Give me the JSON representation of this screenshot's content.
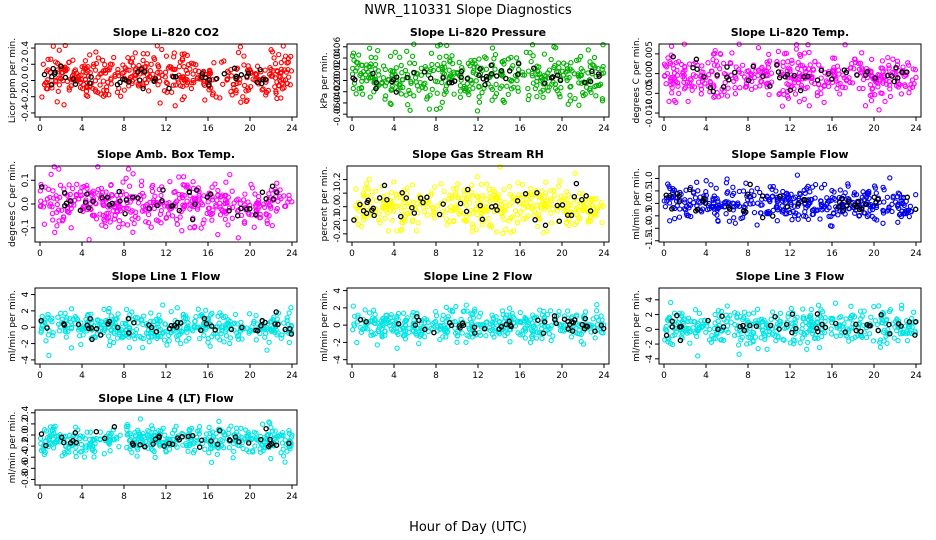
{
  "figure": {
    "title": "NWR_110331  Slope Diagnostics",
    "xlabel": "Hour of Day (UTC)"
  },
  "chart_data": [
    {
      "type": "scatter",
      "title": "Slope Li–820 CO2",
      "ylabel": "Licor ppm per min.",
      "color": "#ff0000",
      "xlim": [
        0,
        24
      ],
      "xticks": [
        0,
        4,
        8,
        12,
        16,
        20,
        24
      ],
      "ylim": [
        -0.45,
        0.45
      ],
      "yticks": [
        -0.4,
        -0.2,
        0.0,
        0.2,
        0.4
      ],
      "ytick_labels": [
        "-0.4",
        "-0.2",
        "0.0",
        "0.2",
        "0.4"
      ],
      "center": 0.05,
      "spread": 0.14,
      "n_points": 420,
      "n_black": 45,
      "black_spread": 0.08
    },
    {
      "type": "scatter",
      "title": "Slope Li–820 Pressure",
      "ylabel": "kPa per min.",
      "color": "#00b000",
      "xlim": [
        0,
        24
      ],
      "xticks": [
        0,
        4,
        8,
        12,
        16,
        20,
        24
      ],
      "ylim": [
        -0.065,
        0.065
      ],
      "yticks": [
        -0.06,
        -0.04,
        -0.02,
        0.0,
        0.02,
        0.04,
        0.06
      ],
      "ytick_labels": [
        "-0.06",
        "-0.04",
        "-0.02",
        "0.00",
        "0.02",
        "0.04",
        "0.06"
      ],
      "center": 0.005,
      "spread": 0.022,
      "n_points": 420,
      "n_black": 45,
      "black_spread": 0.012
    },
    {
      "type": "scatter",
      "title": "Slope Li–820 Temp.",
      "ylabel": "degrees C per min.",
      "color": "#ff00ff",
      "xlim": [
        0,
        24
      ],
      "xticks": [
        0,
        4,
        8,
        12,
        16,
        20,
        24
      ],
      "ylim": [
        -0.011,
        0.0075
      ],
      "yticks": [
        -0.01,
        -0.005,
        0.0,
        0.005
      ],
      "ytick_labels": [
        "-0.010",
        "-0.005",
        "0.000",
        "0.005"
      ],
      "center": -0.0005,
      "spread": 0.003,
      "n_points": 420,
      "n_black": 45,
      "black_spread": 0.002
    },
    {
      "type": "scatter",
      "title": "Slope Amb. Box Temp.",
      "ylabel": "degrees C per min.",
      "color": "#ff00ff",
      "xlim": [
        0,
        24
      ],
      "xticks": [
        0,
        4,
        8,
        12,
        16,
        20,
        24
      ],
      "ylim": [
        -0.16,
        0.16
      ],
      "yticks": [
        -0.1,
        0.0,
        0.1
      ],
      "ytick_labels": [
        "-0.1",
        "0.0",
        "0.1"
      ],
      "center": 0.0,
      "spread": 0.055,
      "n_points": 420,
      "n_black": 45,
      "black_spread": 0.035
    },
    {
      "type": "scatter",
      "title": "Slope Gas Stream RH",
      "ylabel": "percent per min.",
      "color": "#ffff00",
      "xlim": [
        0,
        24
      ],
      "xticks": [
        0,
        4,
        8,
        12,
        16,
        20,
        24
      ],
      "ylim": [
        -0.26,
        0.3
      ],
      "yticks": [
        -0.2,
        -0.1,
        0.0,
        0.1,
        0.2
      ],
      "ytick_labels": [
        "-0.2",
        "-0.1",
        "0.0",
        "0.1",
        "0.2"
      ],
      "center": 0.0,
      "spread": 0.08,
      "n_points": 420,
      "n_black": 45,
      "black_spread": 0.07
    },
    {
      "type": "scatter",
      "title": "Slope Sample Flow",
      "ylabel": "ml/min per min.",
      "color": "#0000ee",
      "xlim": [
        0,
        24
      ],
      "xticks": [
        0,
        4,
        8,
        12,
        16,
        20,
        24
      ],
      "ylim": [
        -1.55,
        1.5
      ],
      "yticks": [
        -1.5,
        -1.0,
        -0.5,
        0.0,
        0.5,
        1.0
      ],
      "ytick_labels": [
        "-1.5",
        "-1.0",
        "-0.5",
        "0.0",
        "0.5",
        "1.0"
      ],
      "center": 0.0,
      "spread": 0.35,
      "n_points": 420,
      "n_black": 45,
      "black_spread": 0.3
    },
    {
      "type": "scatter",
      "title": "Slope Line 1 Flow",
      "ylabel": "ml/min per min.",
      "color": "#00e5e5",
      "xlim": [
        0,
        24
      ],
      "xticks": [
        0,
        4,
        8,
        12,
        16,
        20,
        24
      ],
      "ylim": [
        -4.5,
        4.8
      ],
      "yticks": [
        -4,
        -2,
        0,
        2,
        4
      ],
      "ytick_labels": [
        "-4",
        "-2",
        "0",
        "2",
        "4"
      ],
      "center": 0.0,
      "spread": 1.0,
      "n_points": 420,
      "n_black": 45,
      "black_spread": 0.5
    },
    {
      "type": "scatter",
      "title": "Slope Line 2 Flow",
      "ylabel": "ml/min per min.",
      "color": "#00e5e5",
      "xlim": [
        0,
        24
      ],
      "xticks": [
        0,
        4,
        8,
        12,
        16,
        20,
        24
      ],
      "ylim": [
        -4.5,
        4.3
      ],
      "yticks": [
        -4,
        -2,
        0,
        2,
        4
      ],
      "ytick_labels": [
        "-4",
        "-2",
        "0",
        "2",
        "4"
      ],
      "center": 0.0,
      "spread": 0.85,
      "n_points": 420,
      "n_black": 45,
      "black_spread": 0.6
    },
    {
      "type": "scatter",
      "title": "Slope Line 3 Flow",
      "ylabel": "ml/min per min.",
      "color": "#00e5e5",
      "xlim": [
        0,
        24
      ],
      "xticks": [
        0,
        4,
        8,
        12,
        16,
        20,
        24
      ],
      "ylim": [
        -4.7,
        5.6
      ],
      "yticks": [
        -4,
        -2,
        0,
        2,
        4
      ],
      "ytick_labels": [
        "-4",
        "-2",
        "0",
        "2",
        "4"
      ],
      "center": 0.3,
      "spread": 1.2,
      "n_points": 420,
      "n_black": 45,
      "black_spread": 0.8
    },
    {
      "type": "scatter",
      "title": "Slope Line 4 (LT) Flow",
      "ylabel": "ml/min per min.",
      "color": "#00e5e5",
      "xlim": [
        0,
        24
      ],
      "xticks": [
        0,
        4,
        8,
        12,
        16,
        20,
        24
      ],
      "ylim": [
        -0.9,
        0.45
      ],
      "yticks": [
        -0.8,
        -0.6,
        -0.4,
        -0.2,
        0.0,
        0.2,
        0.4
      ],
      "ytick_labels": [
        "-0.8",
        "-0.6",
        "-0.4",
        "-0.2",
        "0.0",
        "0.2",
        "0.4"
      ],
      "center": -0.1,
      "spread": 0.13,
      "n_points": 420,
      "n_black": 45,
      "black_spread": 0.1
    }
  ]
}
